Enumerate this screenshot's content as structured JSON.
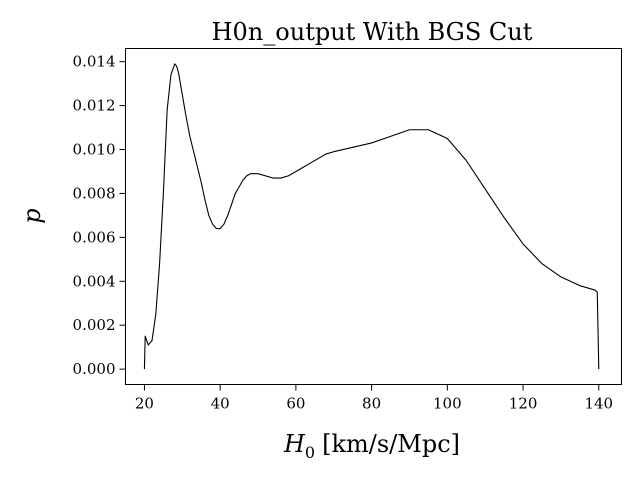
{
  "chart_data": {
    "type": "line",
    "title": "H0n_output With BGS Cut",
    "xlabel": "[km/s/Mpc]",
    "xlabel_symbol": "H",
    "xlabel_subscript": "0",
    "ylabel": "p",
    "xlim": [
      15,
      146
    ],
    "ylim": [
      -0.0007,
      0.0146
    ],
    "xticks": [
      20,
      40,
      60,
      80,
      100,
      120,
      140
    ],
    "xtick_labels": [
      "20",
      "40",
      "60",
      "80",
      "100",
      "120",
      "140"
    ],
    "yticks": [
      0.0,
      0.002,
      0.004,
      0.006,
      0.008,
      0.01,
      0.012,
      0.014
    ],
    "ytick_labels": [
      "0.000",
      "0.002",
      "0.004",
      "0.006",
      "0.008",
      "0.010",
      "0.012",
      "0.014"
    ],
    "grid": false,
    "legend": "none",
    "series": [
      {
        "color": "#000000",
        "x": [
          20,
          20.2,
          21,
          22,
          23,
          24,
          25,
          26,
          27,
          28,
          28.5,
          29,
          30,
          31,
          32,
          33,
          34,
          35,
          36,
          37,
          38,
          39,
          40,
          41,
          42,
          43,
          44,
          45,
          46,
          47,
          48,
          49,
          50,
          52,
          54,
          56,
          58,
          60,
          62,
          64,
          66,
          68,
          70,
          75,
          80,
          85,
          90,
          93,
          95,
          100,
          105,
          110,
          115,
          120,
          125,
          130,
          135,
          139,
          139.6,
          140
        ],
        "y": [
          0.0,
          0.0015,
          0.0011,
          0.0013,
          0.0025,
          0.0048,
          0.008,
          0.0118,
          0.0134,
          0.0139,
          0.0138,
          0.0135,
          0.0125,
          0.0115,
          0.0106,
          0.0099,
          0.0092,
          0.0085,
          0.0077,
          0.007,
          0.0066,
          0.0064,
          0.0064,
          0.0066,
          0.007,
          0.0075,
          0.008,
          0.0083,
          0.0086,
          0.0088,
          0.0089,
          0.0089,
          0.0089,
          0.0088,
          0.0087,
          0.0087,
          0.0088,
          0.009,
          0.0092,
          0.0094,
          0.0096,
          0.0098,
          0.0099,
          0.0101,
          0.0103,
          0.0106,
          0.0109,
          0.0109,
          0.0109,
          0.0105,
          0.0095,
          0.0082,
          0.0069,
          0.0057,
          0.0048,
          0.0042,
          0.0038,
          0.0036,
          0.0035,
          0.0
        ]
      }
    ]
  }
}
